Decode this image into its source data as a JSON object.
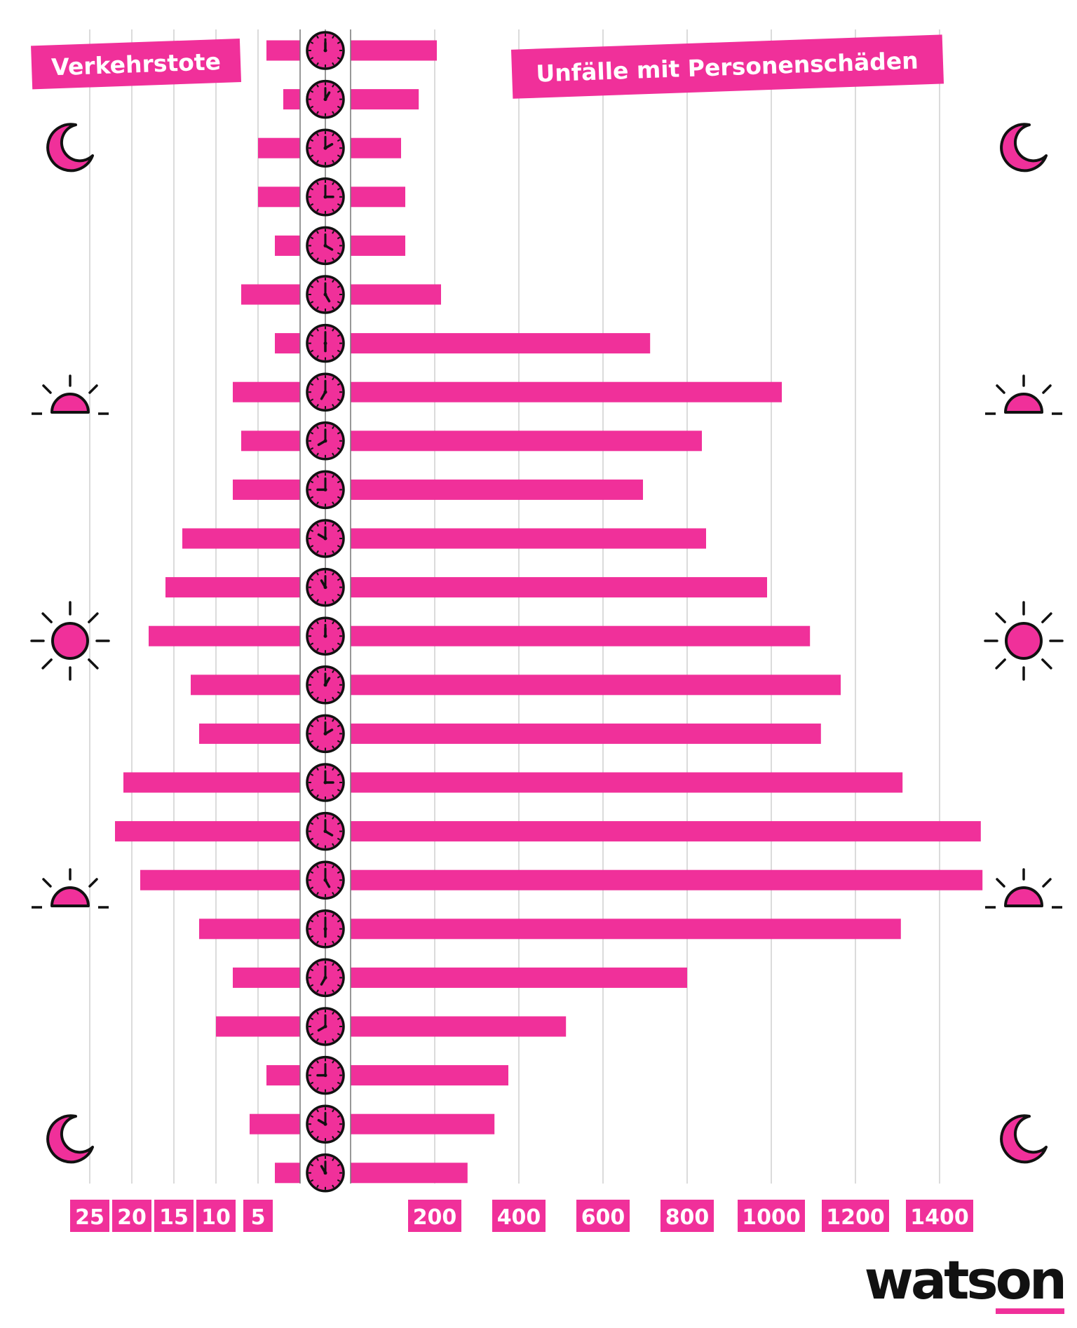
{
  "colors": {
    "accent": "#f0309a",
    "outline": "#111111",
    "grid": "#cfcfcf"
  },
  "branding": {
    "logo_text": "watson"
  },
  "icons": {
    "time_of_day": [
      "moon-icon",
      "moon-icon",
      "moon-icon",
      "sunrise-icon",
      "sunrise-icon",
      "sun-icon",
      "sun-icon",
      "sunset-icon",
      "sunset-icon",
      "moon-icon"
    ],
    "row_marker": "clock-icon"
  },
  "chart_data": {
    "type": "bar",
    "layout": "butterfly",
    "categories": [
      "00",
      "01",
      "02",
      "03",
      "04",
      "05",
      "06",
      "07",
      "08",
      "09",
      "10",
      "11",
      "12",
      "13",
      "14",
      "15",
      "16",
      "17",
      "18",
      "19",
      "20",
      "21",
      "22",
      "23"
    ],
    "series": [
      {
        "name": "Verkehrstote",
        "direction": "left",
        "values": [
          4,
          2,
          5,
          5,
          3,
          7,
          3,
          8,
          7,
          8,
          14,
          16,
          18,
          13,
          12,
          21,
          22,
          19,
          12,
          8,
          10,
          4,
          6,
          3
        ],
        "ticks": [
          25,
          20,
          15,
          10,
          5
        ],
        "tick_labels": [
          "25",
          "20",
          "15",
          "10",
          "5"
        ]
      },
      {
        "name": "Unfälle mit Personenschäden",
        "direction": "right",
        "values": [
          205,
          162,
          120,
          130,
          130,
          215,
          712,
          1025,
          835,
          695,
          845,
          990,
          1092,
          1165,
          1118,
          1312,
          1498,
          1502,
          1308,
          800,
          512,
          375,
          342,
          278
        ],
        "ticks": [
          200,
          400,
          600,
          800,
          1000,
          1200,
          1400
        ],
        "tick_labels": [
          "200",
          "400",
          "600",
          "800",
          "1000",
          "1200",
          "1400"
        ]
      }
    ],
    "xlim_left": [
      0,
      25
    ],
    "xlim_right": [
      0,
      1500
    ],
    "grid": true
  }
}
